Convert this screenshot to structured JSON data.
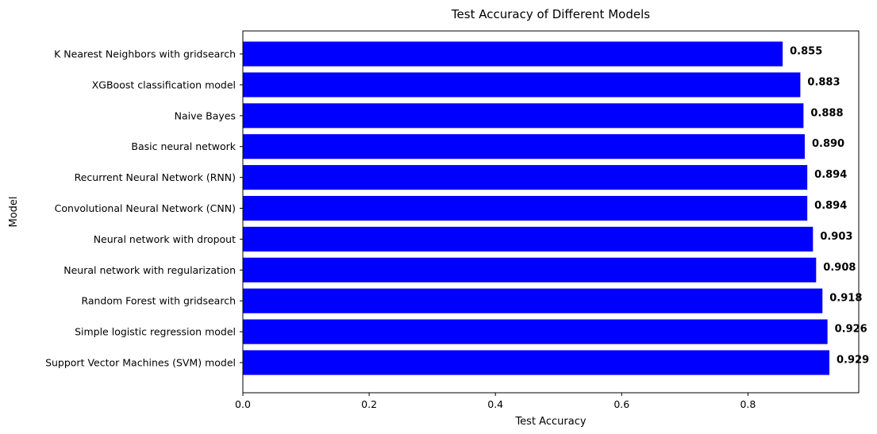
{
  "chart_data": {
    "type": "bar",
    "orientation": "horizontal",
    "title": "Test Accuracy of Different Models",
    "xlabel": "Test Accuracy",
    "ylabel": "Model",
    "xlim": [
      0,
      0.9755
    ],
    "xticks": [
      0.0,
      0.2,
      0.4,
      0.6,
      0.8
    ],
    "xtick_labels": [
      "0.0",
      "0.2",
      "0.4",
      "0.6",
      "0.8"
    ],
    "bar_color": "#0000ff",
    "grid": false,
    "categories": [
      "Support Vector Machines (SVM) model",
      "Simple logistic regression model",
      "Random Forest with gridsearch",
      "Neural network with regularization",
      "Neural network with dropout",
      "Convolutional Neural Network (CNN)",
      "Recurrent Neural Network (RNN)",
      "Basic neural network",
      "Naive Bayes",
      "XGBoost classification model",
      "K Nearest Neighbors with gridsearch"
    ],
    "values": [
      0.929,
      0.926,
      0.918,
      0.908,
      0.903,
      0.894,
      0.894,
      0.89,
      0.888,
      0.883,
      0.855
    ],
    "value_labels": [
      "0.929",
      "0.926",
      "0.918",
      "0.908",
      "0.903",
      "0.894",
      "0.894",
      "0.890",
      "0.888",
      "0.883",
      "0.855"
    ]
  }
}
